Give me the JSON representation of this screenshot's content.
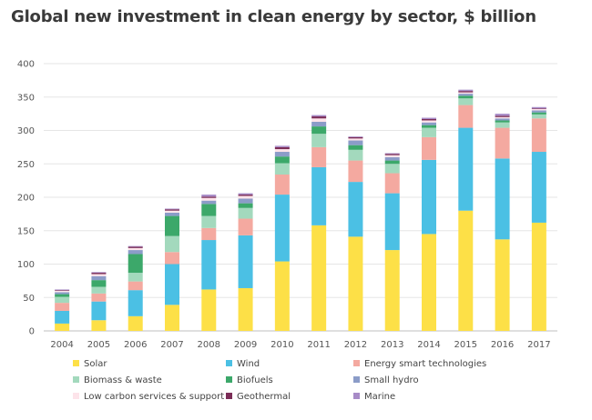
{
  "chart_data": {
    "type": "bar",
    "stacked": true,
    "title": "Global new investment in clean energy by sector, $ billion",
    "xlabel": "",
    "ylabel": "",
    "ylim": [
      0,
      400
    ],
    "yticks": [
      0,
      50,
      100,
      150,
      200,
      250,
      300,
      350,
      400
    ],
    "grid": true,
    "legend_position": "bottom",
    "categories": [
      "2004",
      "2005",
      "2006",
      "2007",
      "2008",
      "2009",
      "2010",
      "2011",
      "2012",
      "2013",
      "2014",
      "2015",
      "2016",
      "2017"
    ],
    "series": [
      {
        "name": "Solar",
        "color": "#fde047",
        "values": [
          11,
          16,
          22,
          39,
          62,
          64,
          104,
          158,
          141,
          121,
          145,
          180,
          137,
          162
        ]
      },
      {
        "name": "Wind",
        "color": "#4bc0e4",
        "values": [
          19,
          28,
          39,
          61,
          74,
          79,
          100,
          87,
          82,
          85,
          111,
          124,
          121,
          106
        ]
      },
      {
        "name": "Energy smart technologies",
        "color": "#f4a9a0",
        "values": [
          12,
          12,
          13,
          18,
          18,
          25,
          30,
          30,
          32,
          30,
          34,
          34,
          46,
          50
        ]
      },
      {
        "name": "Biomass & waste",
        "color": "#a3d9bd",
        "values": [
          9,
          10,
          13,
          24,
          18,
          16,
          17,
          20,
          16,
          14,
          14,
          10,
          8,
          6
        ]
      },
      {
        "name": "Biofuels",
        "color": "#3ca86a",
        "values": [
          4,
          10,
          28,
          30,
          18,
          7,
          10,
          11,
          7,
          5,
          4,
          4,
          3,
          3
        ]
      },
      {
        "name": "Small hydro",
        "color": "#8b9cc8",
        "values": [
          3,
          6,
          6,
          5,
          5,
          7,
          7,
          7,
          7,
          5,
          4,
          3,
          3,
          3
        ]
      },
      {
        "name": "Low carbon services & support",
        "color": "#fde4ea",
        "values": [
          2,
          3,
          3,
          3,
          4,
          4,
          4,
          5,
          3,
          3,
          3,
          2,
          2,
          2
        ]
      },
      {
        "name": "Geothermal",
        "color": "#7b2d57",
        "values": [
          1,
          2,
          2,
          2,
          2,
          2,
          3,
          3,
          2,
          2,
          2,
          2,
          2,
          1
        ]
      },
      {
        "name": "Marine",
        "color": "#a78bc7",
        "values": [
          1,
          1,
          1,
          1,
          3,
          2,
          2,
          2,
          1,
          1,
          2,
          2,
          3,
          2
        ]
      }
    ]
  }
}
